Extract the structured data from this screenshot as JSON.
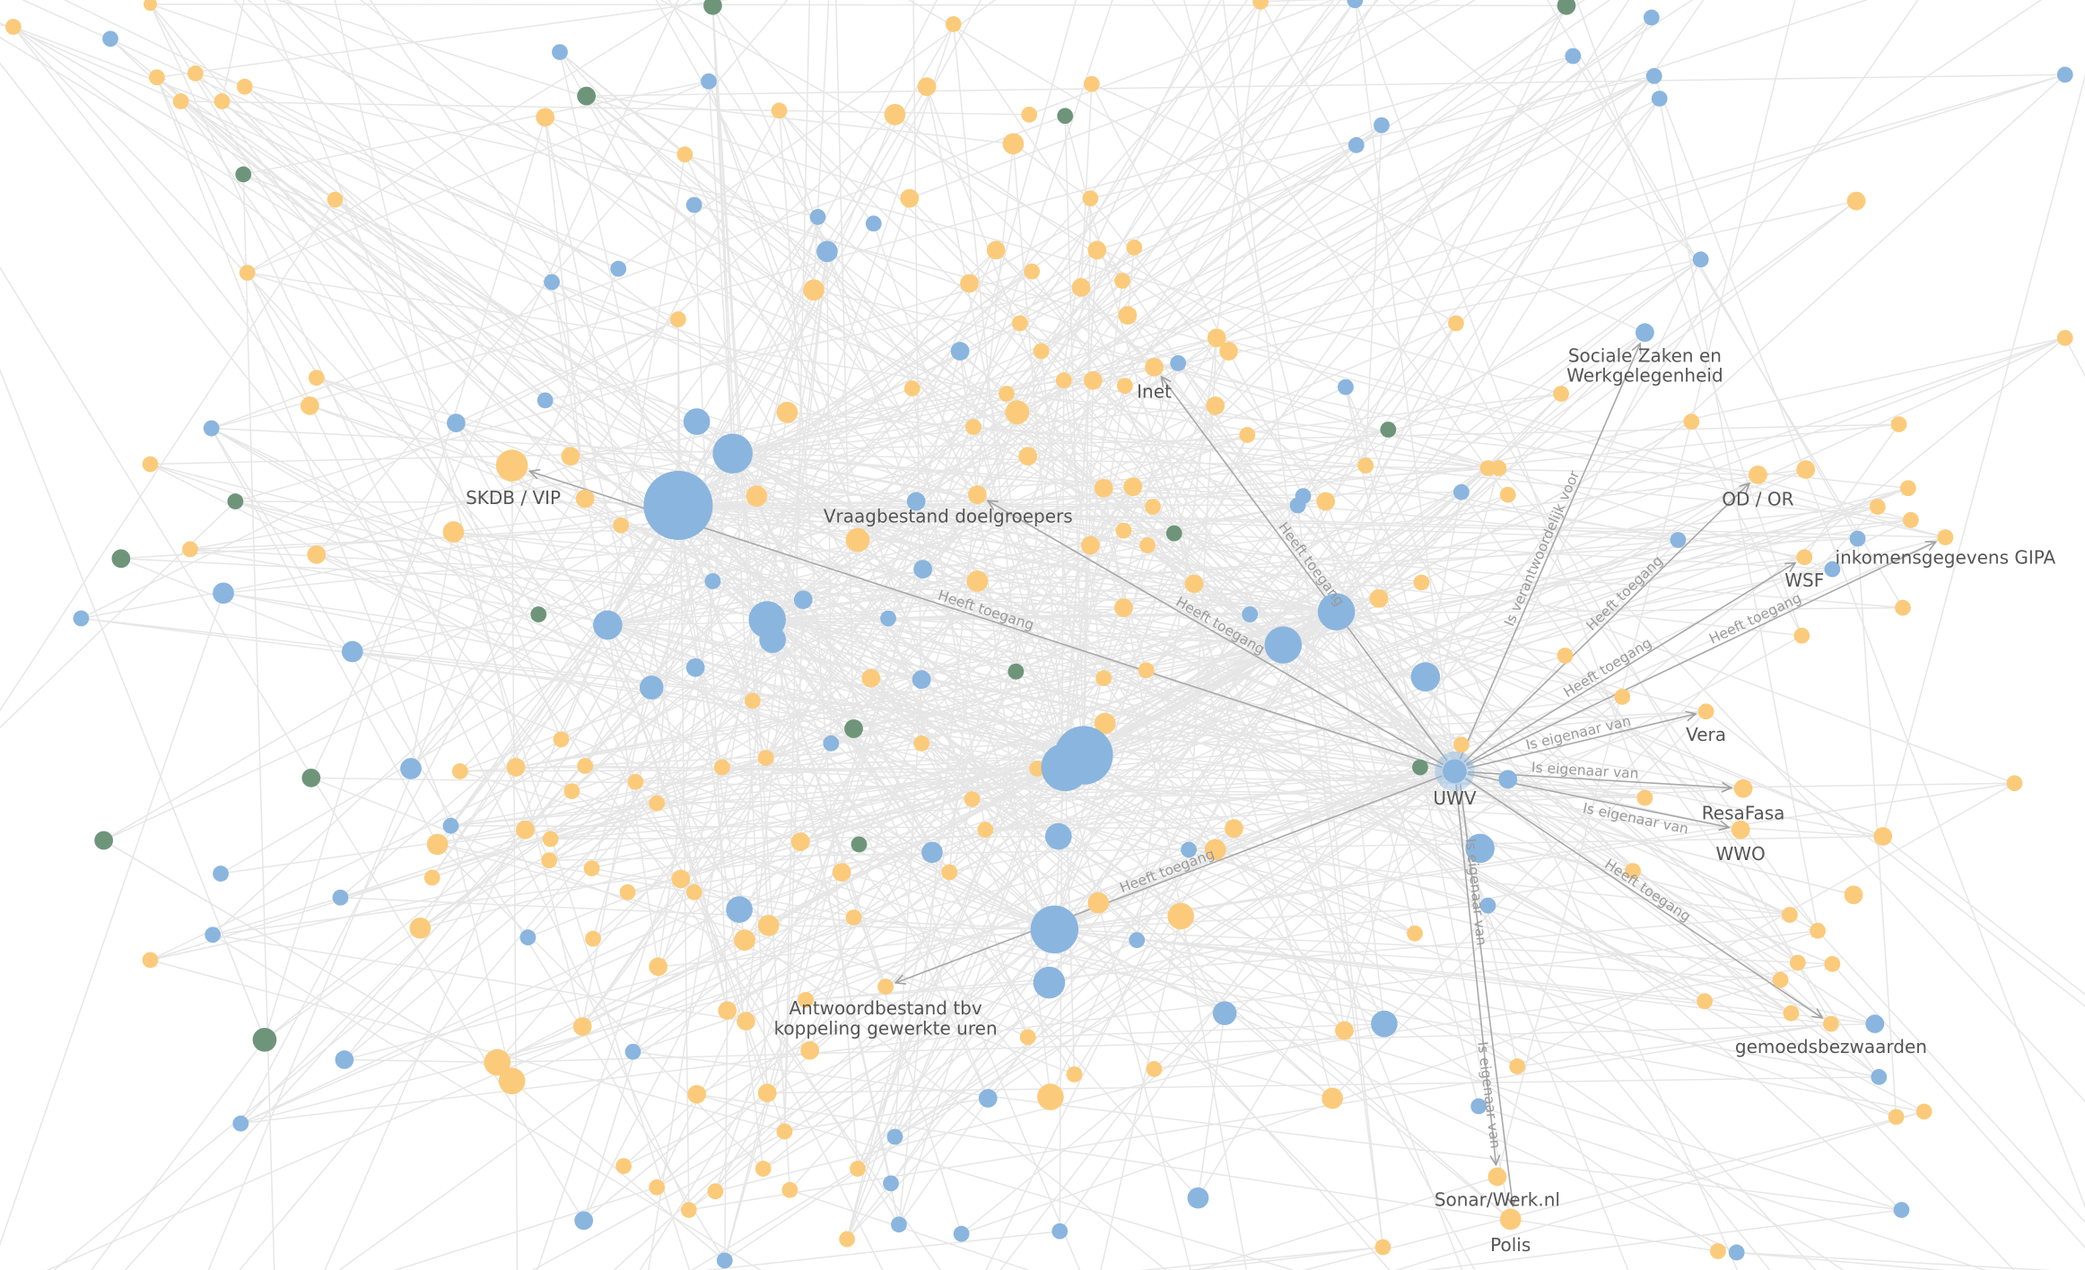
{
  "colors": {
    "application": "#FBCB7B",
    "organisation": "#8AB5DE",
    "other": "#6E957A",
    "edge": "#E6E6E6",
    "edge_highlight": "#A9A9A9",
    "label": "#555555",
    "edge_label": "#9A9A9A"
  },
  "focus_node": "UWV",
  "nodes": {
    "uwv": "UWV",
    "szw_line1": "Sociale Zaken en",
    "szw_line2": "Werkgelegenheid",
    "skdb": "SKDB / VIP",
    "vraagbestand": "Vraagbestand doelgroepers",
    "inet": "Inet",
    "odor": "OD / OR",
    "wsf": "WSF",
    "gipa": "inkomensgegevens GIPA",
    "vera": "Vera",
    "resafasa": "ResaFasa",
    "wwo": "WWO",
    "gemoed": "gemoedsbezwaarden",
    "sonar": "Sonar/Werk.nl",
    "polis": "Polis",
    "antwoord_line1": "Antwoordbestand tbv",
    "antwoord_line2": "koppeling gewerkte uren"
  },
  "relations": [
    {
      "from": "UWV",
      "to": "SKDB / VIP",
      "label": "Heeft toegang"
    },
    {
      "from": "UWV",
      "to": "Vraagbestand doelgroepers",
      "label": "Heeft toegang"
    },
    {
      "from": "UWV",
      "to": "Inet",
      "label": "Heeft toegang"
    },
    {
      "from": "UWV",
      "to": "Sociale Zaken en Werkgelegenheid",
      "label": "Is verantwoordelijk voor"
    },
    {
      "from": "UWV",
      "to": "OD / OR",
      "label": "Heeft toegang"
    },
    {
      "from": "UWV",
      "to": "WSF",
      "label": "Heeft toegang"
    },
    {
      "from": "UWV",
      "to": "inkomensgegevens GIPA",
      "label": "Heeft toegang"
    },
    {
      "from": "UWV",
      "to": "Vera",
      "label": "Is eigenaar van"
    },
    {
      "from": "UWV",
      "to": "ResaFasa",
      "label": "Is eigenaar van"
    },
    {
      "from": "UWV",
      "to": "WWO",
      "label": "Is eigenaar van"
    },
    {
      "from": "UWV",
      "to": "gemoedsbezwaarden",
      "label": "Heeft toegang"
    },
    {
      "from": "UWV",
      "to": "Sonar/Werk.nl",
      "label": "Is eigenaar van"
    },
    {
      "from": "UWV",
      "to": "Polis",
      "label": "Is eigenaar van"
    },
    {
      "from": "UWV",
      "to": "Antwoordbestand tbv koppeling gewerkte uren",
      "label": "Heeft toegang"
    }
  ]
}
